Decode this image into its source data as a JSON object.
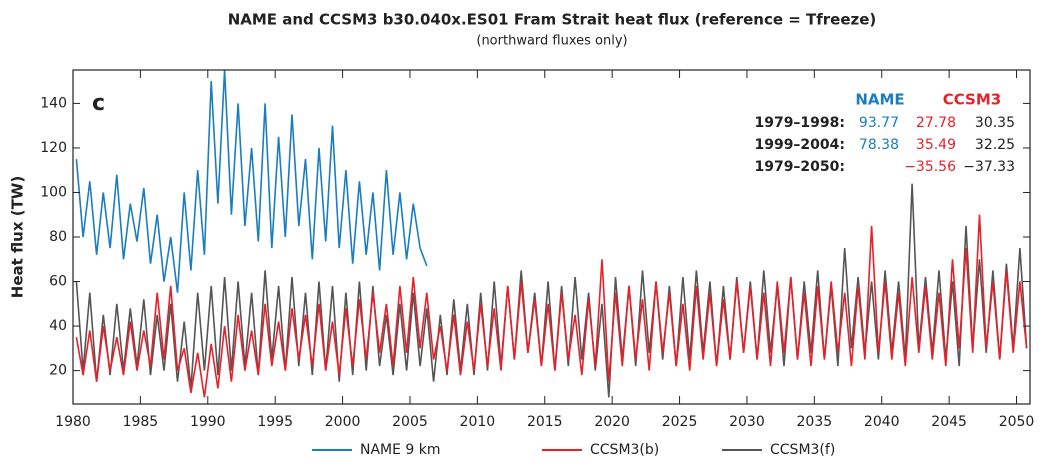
{
  "chart_data": {
    "type": "line",
    "title": "NAME and CCSM3 b30.040x.ES01 Fram Strait heat flux (reference = Tfreeze)",
    "subtitle": "(northward fluxes only)",
    "ylabel": "Heat flux (TW)",
    "panel_label": "c",
    "xlim": [
      1980,
      2051
    ],
    "xticks": [
      1980,
      1985,
      1990,
      1995,
      2000,
      2005,
      2010,
      2015,
      2020,
      2025,
      2030,
      2035,
      2040,
      2045,
      2050
    ],
    "ylim": [
      5,
      155
    ],
    "yticks": [
      20,
      40,
      60,
      80,
      100,
      120,
      140
    ],
    "stats": {
      "columns": [
        "NAME",
        "CCSM3"
      ],
      "column_colors": [
        "#1a7dc0",
        "#e8202a"
      ],
      "rows": [
        {
          "label": "1979–1998:",
          "cells": [
            "93.77",
            "27.78",
            "30.35"
          ]
        },
        {
          "label": "1999–2004:",
          "cells": [
            "78.38",
            "35.49",
            "32.25"
          ]
        },
        {
          "label": "1979–2050:",
          "cells": [
            null,
            "−35.56",
            "−37.33"
          ]
        }
      ],
      "cell_colors": [
        "#1a7dc0",
        "#e8202a",
        "#222222"
      ]
    },
    "series": [
      {
        "name": "NAME 9 km",
        "color": "#1a7dc0",
        "x": [
          1980.25,
          1980.75,
          1981.25,
          1981.75,
          1982.25,
          1982.75,
          1983.25,
          1983.75,
          1984.25,
          1984.75,
          1985.25,
          1985.75,
          1986.25,
          1986.75,
          1987.25,
          1987.75,
          1988.25,
          1988.75,
          1989.25,
          1989.75,
          1990.25,
          1990.75,
          1991.25,
          1991.75,
          1992.25,
          1992.75,
          1993.25,
          1993.75,
          1994.25,
          1994.75,
          1995.25,
          1995.75,
          1996.25,
          1996.75,
          1997.25,
          1997.75,
          1998.25,
          1998.75,
          1999.25,
          1999.75,
          2000.25,
          2000.75,
          2001.25,
          2001.75,
          2002.25,
          2002.75,
          2003.25,
          2003.75,
          2004.25,
          2004.75,
          2005.25,
          2005.75,
          2006.25
        ],
        "values": [
          115,
          80,
          105,
          72,
          100,
          75,
          108,
          70,
          95,
          78,
          102,
          68,
          90,
          60,
          80,
          55,
          100,
          65,
          110,
          72,
          150,
          95,
          155,
          90,
          140,
          85,
          120,
          78,
          140,
          75,
          125,
          80,
          135,
          85,
          115,
          70,
          120,
          78,
          130,
          75,
          110,
          68,
          105,
          72,
          100,
          65,
          110,
          72,
          100,
          70,
          95,
          75,
          67
        ]
      },
      {
        "name": "CCSM3(b)",
        "color": "#e8202a",
        "x": [
          1980.25,
          1980.75,
          1981.25,
          1981.75,
          1982.25,
          1982.75,
          1983.25,
          1983.75,
          1984.25,
          1984.75,
          1985.25,
          1985.75,
          1986.25,
          1986.75,
          1987.25,
          1987.75,
          1988.25,
          1988.75,
          1989.25,
          1989.75,
          1990.25,
          1990.75,
          1991.25,
          1991.75,
          1992.25,
          1992.75,
          1993.25,
          1993.75,
          1994.25,
          1994.75,
          1995.25,
          1995.75,
          1996.25,
          1996.75,
          1997.25,
          1997.75,
          1998.25,
          1998.75,
          1999.25,
          1999.75,
          2000.25,
          2000.75,
          2001.25,
          2001.75,
          2002.25,
          2002.75,
          2003.25,
          2003.75,
          2004.25,
          2004.75,
          2005.25,
          2005.75,
          2006.25,
          2006.75,
          2007.25,
          2007.75,
          2008.25,
          2008.75,
          2009.25,
          2009.75,
          2010.25,
          2010.75,
          2011.25,
          2011.75,
          2012.25,
          2012.75,
          2013.25,
          2013.75,
          2014.25,
          2014.75,
          2015.25,
          2015.75,
          2016.25,
          2016.75,
          2017.25,
          2017.75,
          2018.25,
          2018.75,
          2019.25,
          2019.75,
          2020.25,
          2020.75,
          2021.25,
          2021.75,
          2022.25,
          2022.75,
          2023.25,
          2023.75,
          2024.25,
          2024.75,
          2025.25,
          2025.75,
          2026.25,
          2026.75,
          2027.25,
          2027.75,
          2028.25,
          2028.75,
          2029.25,
          2029.75,
          2030.25,
          2030.75,
          2031.25,
          2031.75,
          2032.25,
          2032.75,
          2033.25,
          2033.75,
          2034.25,
          2034.75,
          2035.25,
          2035.75,
          2036.25,
          2036.75,
          2037.25,
          2037.75,
          2038.25,
          2038.75,
          2039.25,
          2039.75,
          2040.25,
          2040.75,
          2041.25,
          2041.75,
          2042.25,
          2042.75,
          2043.25,
          2043.75,
          2044.25,
          2044.75,
          2045.25,
          2045.75,
          2046.25,
          2046.75,
          2047.25,
          2047.75,
          2048.25,
          2048.75,
          2049.25,
          2049.75,
          2050.25,
          2050.75
        ],
        "values": [
          35,
          18,
          38,
          15,
          40,
          20,
          35,
          18,
          42,
          20,
          38,
          22,
          55,
          25,
          58,
          20,
          30,
          10,
          28,
          8,
          32,
          12,
          40,
          15,
          45,
          20,
          38,
          18,
          50,
          22,
          42,
          20,
          48,
          25,
          45,
          22,
          50,
          20,
          42,
          18,
          48,
          22,
          52,
          25,
          55,
          28,
          50,
          22,
          58,
          28,
          62,
          30,
          55,
          25,
          40,
          20,
          45,
          18,
          42,
          20,
          50,
          22,
          48,
          20,
          58,
          25,
          60,
          28,
          52,
          22,
          50,
          20,
          55,
          25,
          45,
          18,
          52,
          22,
          70,
          15,
          55,
          22,
          58,
          25,
          52,
          20,
          60,
          28,
          55,
          22,
          50,
          20,
          58,
          25,
          55,
          22,
          52,
          25,
          60,
          28,
          58,
          25,
          55,
          22,
          60,
          28,
          62,
          25,
          55,
          22,
          58,
          25,
          60,
          28,
          55,
          22,
          58,
          25,
          85,
          28,
          60,
          25,
          55,
          22,
          62,
          28,
          58,
          25,
          55,
          22,
          70,
          30,
          75,
          28,
          90,
          30,
          60,
          25,
          65,
          28,
          60,
          30
        ]
      },
      {
        "name": "CCSM3(f)",
        "color": "#555555",
        "x": [
          1980.25,
          1980.75,
          1981.25,
          1981.75,
          1982.25,
          1982.75,
          1983.25,
          1983.75,
          1984.25,
          1984.75,
          1985.25,
          1985.75,
          1986.25,
          1986.75,
          1987.25,
          1987.75,
          1988.25,
          1988.75,
          1989.25,
          1989.75,
          1990.25,
          1990.75,
          1991.25,
          1991.75,
          1992.25,
          1992.75,
          1993.25,
          1993.75,
          1994.25,
          1994.75,
          1995.25,
          1995.75,
          1996.25,
          1996.75,
          1997.25,
          1997.75,
          1998.25,
          1998.75,
          1999.25,
          1999.75,
          2000.25,
          2000.75,
          2001.25,
          2001.75,
          2002.25,
          2002.75,
          2003.25,
          2003.75,
          2004.25,
          2004.75,
          2005.25,
          2005.75,
          2006.25,
          2006.75,
          2007.25,
          2007.75,
          2008.25,
          2008.75,
          2009.25,
          2009.75,
          2010.25,
          2010.75,
          2011.25,
          2011.75,
          2012.25,
          2012.75,
          2013.25,
          2013.75,
          2014.25,
          2014.75,
          2015.25,
          2015.75,
          2016.25,
          2016.75,
          2017.25,
          2017.75,
          2018.25,
          2018.75,
          2019.25,
          2019.75,
          2020.25,
          2020.75,
          2021.25,
          2021.75,
          2022.25,
          2022.75,
          2023.25,
          2023.75,
          2024.25,
          2024.75,
          2025.25,
          2025.75,
          2026.25,
          2026.75,
          2027.25,
          2027.75,
          2028.25,
          2028.75,
          2029.25,
          2029.75,
          2030.25,
          2030.75,
          2031.25,
          2031.75,
          2032.25,
          2032.75,
          2033.25,
          2033.75,
          2034.25,
          2034.75,
          2035.25,
          2035.75,
          2036.25,
          2036.75,
          2037.25,
          2037.75,
          2038.25,
          2038.75,
          2039.25,
          2039.75,
          2040.25,
          2040.75,
          2041.25,
          2041.75,
          2042.25,
          2042.75,
          2043.25,
          2043.75,
          2044.25,
          2044.75,
          2045.25,
          2045.75,
          2046.25,
          2046.75,
          2047.25,
          2047.75,
          2048.25,
          2048.75,
          2049.25,
          2049.75,
          2050.25,
          2050.75
        ],
        "values": [
          60,
          20,
          55,
          15,
          45,
          18,
          50,
          20,
          48,
          22,
          52,
          18,
          45,
          20,
          50,
          15,
          42,
          12,
          55,
          20,
          58,
          18,
          62,
          20,
          60,
          22,
          55,
          18,
          65,
          25,
          58,
          20,
          62,
          22,
          55,
          18,
          60,
          20,
          58,
          15,
          55,
          18,
          60,
          20,
          58,
          22,
          45,
          18,
          50,
          20,
          55,
          22,
          48,
          15,
          45,
          18,
          52,
          20,
          50,
          18,
          55,
          20,
          60,
          22,
          58,
          25,
          65,
          28,
          55,
          22,
          60,
          20,
          58,
          22,
          62,
          25,
          55,
          20,
          50,
          8,
          62,
          25,
          58,
          22,
          65,
          28,
          60,
          25,
          58,
          22,
          62,
          25,
          65,
          28,
          60,
          22,
          58,
          25,
          62,
          28,
          60,
          25,
          65,
          28,
          58,
          22,
          62,
          25,
          60,
          28,
          65,
          25,
          58,
          22,
          75,
          30,
          62,
          28,
          60,
          25,
          65,
          28,
          60,
          25,
          104,
          30,
          62,
          28,
          65,
          25,
          60,
          22,
          85,
          30,
          70,
          28,
          65,
          25,
          68,
          30,
          75,
          30
        ]
      }
    ]
  }
}
